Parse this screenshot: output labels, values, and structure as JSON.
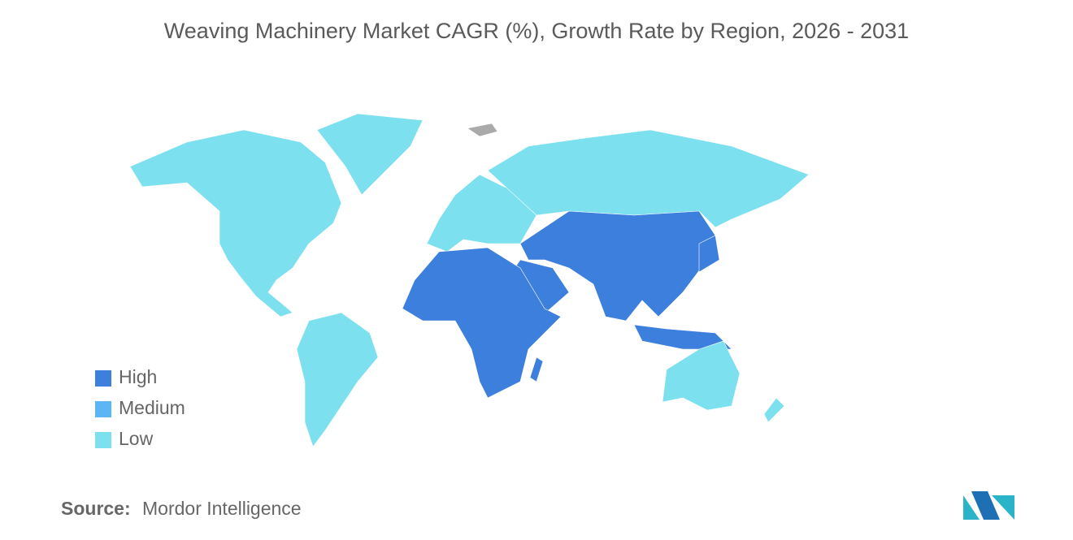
{
  "title": "Weaving Machinery Market CAGR (%), Growth Rate by Region, 2026 - 2031",
  "legend": [
    {
      "name": "High",
      "color": "#3d7fdc"
    },
    {
      "name": "Medium",
      "color": "#5cb5f5"
    },
    {
      "name": "Low",
      "color": "#7ce0ee"
    }
  ],
  "source": {
    "label": "Source:",
    "text": "Mordor Intelligence"
  }
}
